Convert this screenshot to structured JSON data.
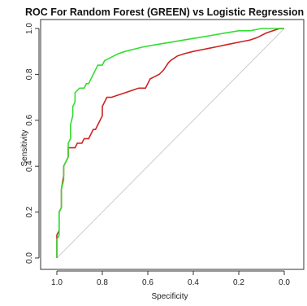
{
  "chart_data": {
    "type": "line",
    "title": "ROC For Random Forest (GREEN) vs Logistic Regression (RED)",
    "xlabel": "Specificity",
    "ylabel": "Sensitivity",
    "xlim": [
      1.0,
      0.0
    ],
    "ylim": [
      0.0,
      1.0
    ],
    "x_reversed": true,
    "grid": false,
    "x_ticks": [
      "1.0",
      "0.8",
      "0.6",
      "0.4",
      "0.2",
      "0.0"
    ],
    "y_ticks": [
      "0.0",
      "0.2",
      "0.4",
      "0.6",
      "0.8",
      "1.0"
    ],
    "reference_line": {
      "color": "#cccccc",
      "points": [
        [
          1.0,
          0.0
        ],
        [
          0.0,
          1.0
        ]
      ]
    },
    "series": [
      {
        "color": "#33dd33",
        "points": [
          [
            1.0,
            0.0
          ],
          [
            1.0,
            0.08
          ],
          [
            0.99,
            0.1
          ],
          [
            0.99,
            0.2
          ],
          [
            0.98,
            0.22
          ],
          [
            0.98,
            0.3
          ],
          [
            0.97,
            0.34
          ],
          [
            0.97,
            0.4
          ],
          [
            0.96,
            0.42
          ],
          [
            0.95,
            0.44
          ],
          [
            0.95,
            0.5
          ],
          [
            0.94,
            0.52
          ],
          [
            0.94,
            0.58
          ],
          [
            0.93,
            0.62
          ],
          [
            0.93,
            0.66
          ],
          [
            0.92,
            0.68
          ],
          [
            0.92,
            0.72
          ],
          [
            0.91,
            0.73
          ],
          [
            0.9,
            0.74
          ],
          [
            0.88,
            0.74
          ],
          [
            0.87,
            0.76
          ],
          [
            0.86,
            0.76
          ],
          [
            0.85,
            0.78
          ],
          [
            0.84,
            0.8
          ],
          [
            0.83,
            0.82
          ],
          [
            0.82,
            0.84
          ],
          [
            0.8,
            0.84
          ],
          [
            0.79,
            0.86
          ],
          [
            0.77,
            0.87
          ],
          [
            0.75,
            0.88
          ],
          [
            0.73,
            0.89
          ],
          [
            0.7,
            0.9
          ],
          [
            0.66,
            0.91
          ],
          [
            0.62,
            0.92
          ],
          [
            0.56,
            0.93
          ],
          [
            0.5,
            0.94
          ],
          [
            0.44,
            0.95
          ],
          [
            0.38,
            0.96
          ],
          [
            0.32,
            0.97
          ],
          [
            0.26,
            0.98
          ],
          [
            0.2,
            0.99
          ],
          [
            0.15,
            0.99
          ],
          [
            0.1,
            1.0
          ],
          [
            0.0,
            1.0
          ]
        ]
      },
      {
        "color": "#cc2222",
        "points": [
          [
            1.0,
            0.0
          ],
          [
            1.0,
            0.1
          ],
          [
            0.99,
            0.12
          ],
          [
            0.99,
            0.2
          ],
          [
            0.98,
            0.22
          ],
          [
            0.98,
            0.3
          ],
          [
            0.97,
            0.36
          ],
          [
            0.97,
            0.4
          ],
          [
            0.96,
            0.42
          ],
          [
            0.95,
            0.44
          ],
          [
            0.95,
            0.48
          ],
          [
            0.94,
            0.48
          ],
          [
            0.92,
            0.48
          ],
          [
            0.91,
            0.5
          ],
          [
            0.89,
            0.5
          ],
          [
            0.88,
            0.52
          ],
          [
            0.86,
            0.52
          ],
          [
            0.85,
            0.54
          ],
          [
            0.84,
            0.56
          ],
          [
            0.83,
            0.56
          ],
          [
            0.82,
            0.58
          ],
          [
            0.81,
            0.6
          ],
          [
            0.8,
            0.62
          ],
          [
            0.8,
            0.66
          ],
          [
            0.79,
            0.68
          ],
          [
            0.78,
            0.7
          ],
          [
            0.76,
            0.7
          ],
          [
            0.73,
            0.71
          ],
          [
            0.7,
            0.72
          ],
          [
            0.67,
            0.73
          ],
          [
            0.64,
            0.74
          ],
          [
            0.61,
            0.74
          ],
          [
            0.6,
            0.76
          ],
          [
            0.59,
            0.78
          ],
          [
            0.57,
            0.79
          ],
          [
            0.55,
            0.8
          ],
          [
            0.53,
            0.82
          ],
          [
            0.51,
            0.85
          ],
          [
            0.5,
            0.86
          ],
          [
            0.47,
            0.88
          ],
          [
            0.44,
            0.89
          ],
          [
            0.4,
            0.9
          ],
          [
            0.35,
            0.91
          ],
          [
            0.3,
            0.92
          ],
          [
            0.25,
            0.93
          ],
          [
            0.2,
            0.94
          ],
          [
            0.15,
            0.95
          ],
          [
            0.12,
            0.96
          ],
          [
            0.08,
            0.98
          ],
          [
            0.05,
            0.99
          ],
          [
            0.02,
            1.0
          ],
          [
            0.0,
            1.0
          ]
        ]
      }
    ]
  }
}
